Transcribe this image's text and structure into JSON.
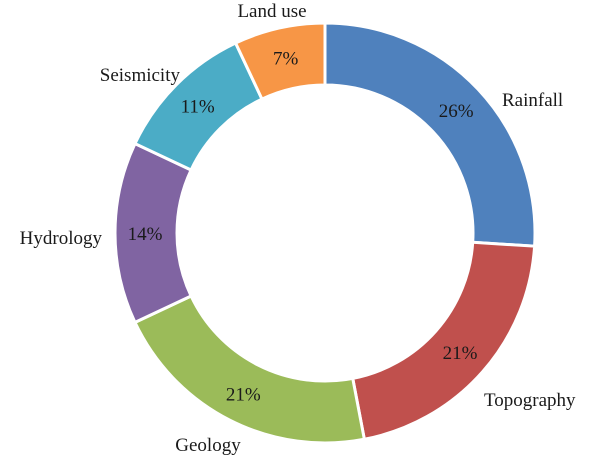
{
  "chart_data": {
    "type": "pie",
    "style": "donut",
    "title": "",
    "value_unit": "%",
    "slices": [
      {
        "label": "Rainfall",
        "value": 26,
        "color": "#4f81bd"
      },
      {
        "label": "Topography",
        "value": 21,
        "color": "#c0504d"
      },
      {
        "label": "Geology",
        "value": 21,
        "color": "#9bbb59"
      },
      {
        "label": "Hydrology",
        "value": 14,
        "color": "#8064a2"
      },
      {
        "label": "Seismicity",
        "value": 11,
        "color": "#4bacc6"
      },
      {
        "label": "Land use",
        "value": 7,
        "color": "#f79646"
      }
    ]
  }
}
